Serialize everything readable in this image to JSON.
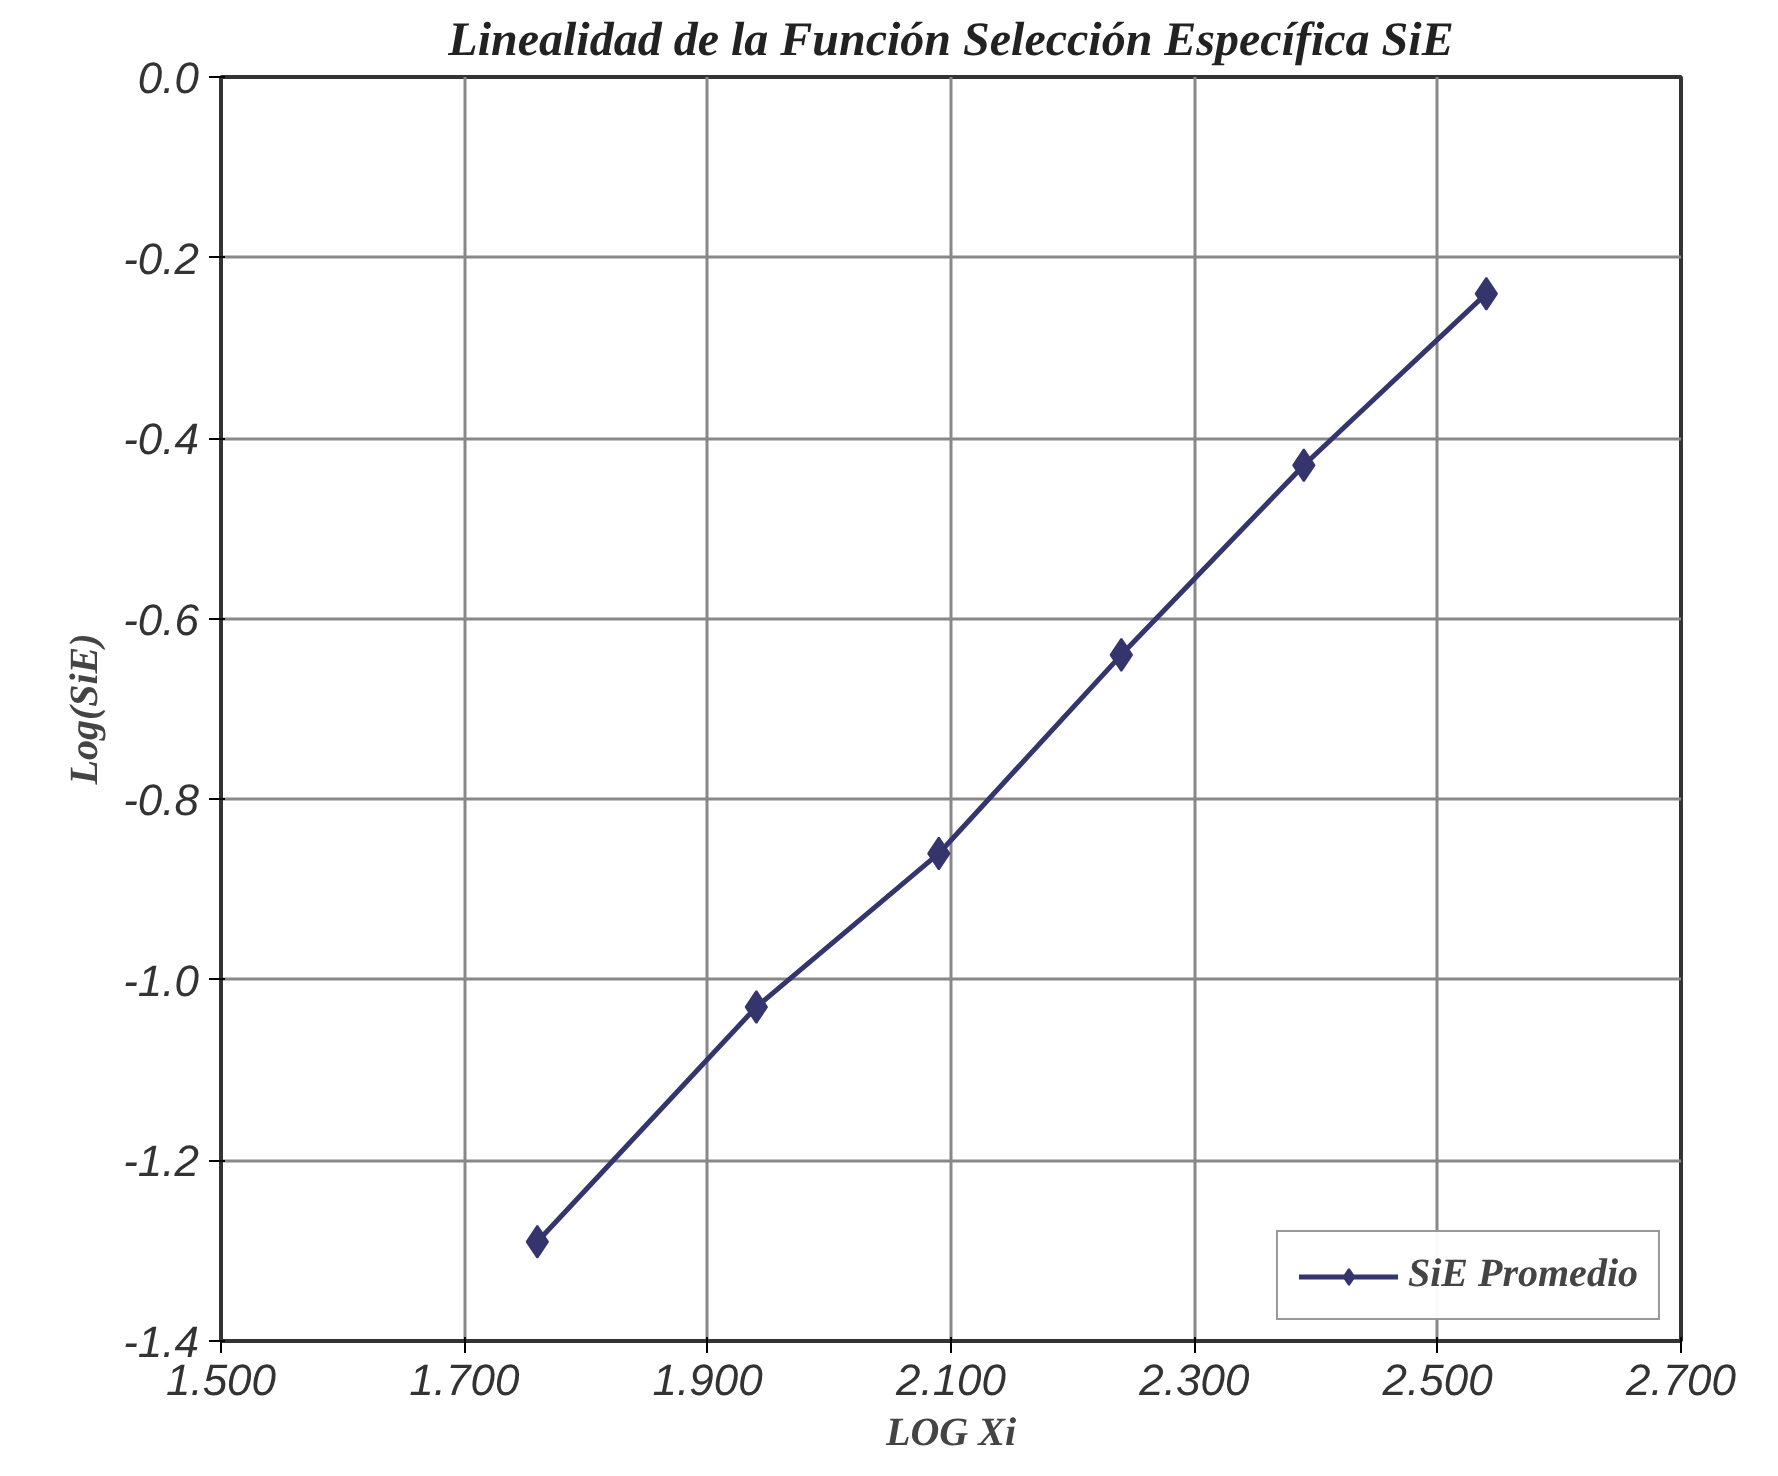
{
  "chart_data": {
    "type": "line",
    "title": "Linealidad de la Función Selección Específica SiE",
    "xlabel": "LOG Xi",
    "ylabel": "Log(SiE)",
    "x": [
      1.76,
      1.94,
      2.09,
      2.24,
      2.39,
      2.54
    ],
    "series": [
      {
        "name": "SiE Promedio",
        "color": "#35356e",
        "values": [
          -1.29,
          -1.03,
          -0.86,
          -0.64,
          -0.43,
          -0.24
        ]
      }
    ],
    "xlim": [
      1.5,
      2.7
    ],
    "ylim": [
      -1.4,
      0.0
    ],
    "xticks": [
      {
        "value": 1.5,
        "label": "1.500"
      },
      {
        "value": 1.7,
        "label": "1.700"
      },
      {
        "value": 1.9,
        "label": "1.900"
      },
      {
        "value": 2.1,
        "label": "2.100"
      },
      {
        "value": 2.3,
        "label": "2.300"
      },
      {
        "value": 2.5,
        "label": "2.500"
      },
      {
        "value": 2.7,
        "label": "2.700"
      }
    ],
    "yticks": [
      {
        "value": 0.0,
        "label": "0.0"
      },
      {
        "value": -0.2,
        "label": "-0.2"
      },
      {
        "value": -0.4,
        "label": "-0.4"
      },
      {
        "value": -0.6,
        "label": "-0.6"
      },
      {
        "value": -0.8,
        "label": "-0.8"
      },
      {
        "value": -1.0,
        "label": "-1.0"
      },
      {
        "value": -1.2,
        "label": "-1.2"
      },
      {
        "value": -1.4,
        "label": "-1.4"
      }
    ],
    "grid": true,
    "legend": "bottom right",
    "marker": "diamond",
    "line_style": "solid"
  }
}
